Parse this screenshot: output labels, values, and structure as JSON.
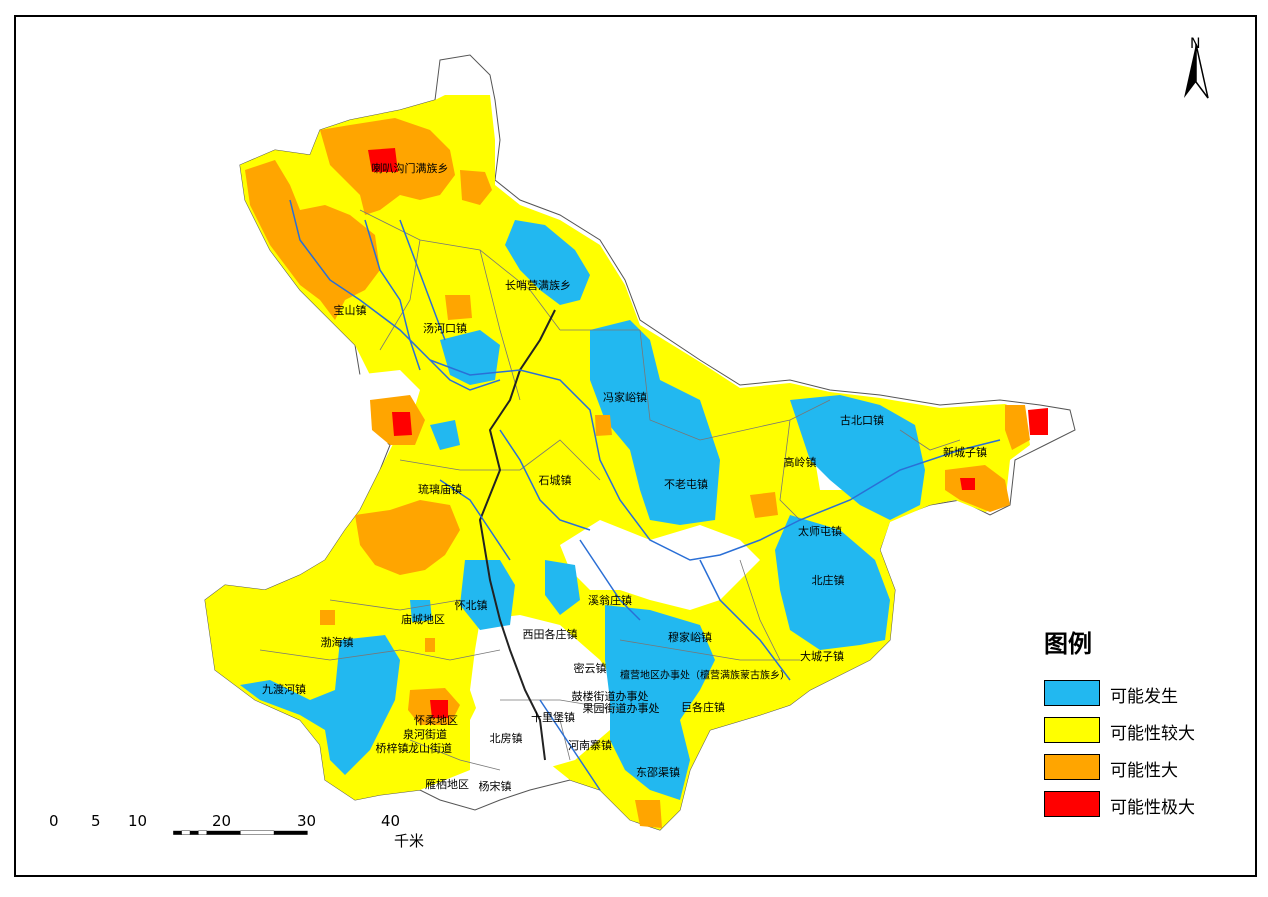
{
  "legend": {
    "title": "图例",
    "items": [
      {
        "label": "可能发生",
        "color": "#22B8F0"
      },
      {
        "label": "可能性较大",
        "color": "#FFFF00"
      },
      {
        "label": "可能性大",
        "color": "#FFA500"
      },
      {
        "label": "可能性极大",
        "color": "#FF0000"
      }
    ]
  },
  "north_arrow": {
    "label": "N"
  },
  "scale_bar": {
    "ticks": [
      "0",
      "5",
      "10",
      "20",
      "30",
      "40"
    ],
    "unit": "千米"
  },
  "places": [
    "喇叭沟门满族乡",
    "长哨营满族乡",
    "宝山镇",
    "汤河口镇",
    "冯家峪镇",
    "古北口镇",
    "新城子镇",
    "高岭镇",
    "不老屯镇",
    "石城镇",
    "琉璃庙镇",
    "太师屯镇",
    "北庄镇",
    "怀北镇",
    "庙城地区",
    "渤海镇",
    "九渡河镇",
    "溪翁庄镇",
    "西田各庄镇",
    "穆家峪镇",
    "密云镇",
    "檀营地区办事处（檀营满族蒙古族乡）",
    "大城子镇",
    "鼓楼街道办事处",
    "果园街道办事处",
    "十里堡镇",
    "巨各庄镇",
    "桥梓镇",
    "怀柔地区",
    "泉河街道",
    "龙山街道",
    "北房镇",
    "河南寨镇",
    "东邵渠镇",
    "雁栖地区",
    "杨宋镇"
  ]
}
